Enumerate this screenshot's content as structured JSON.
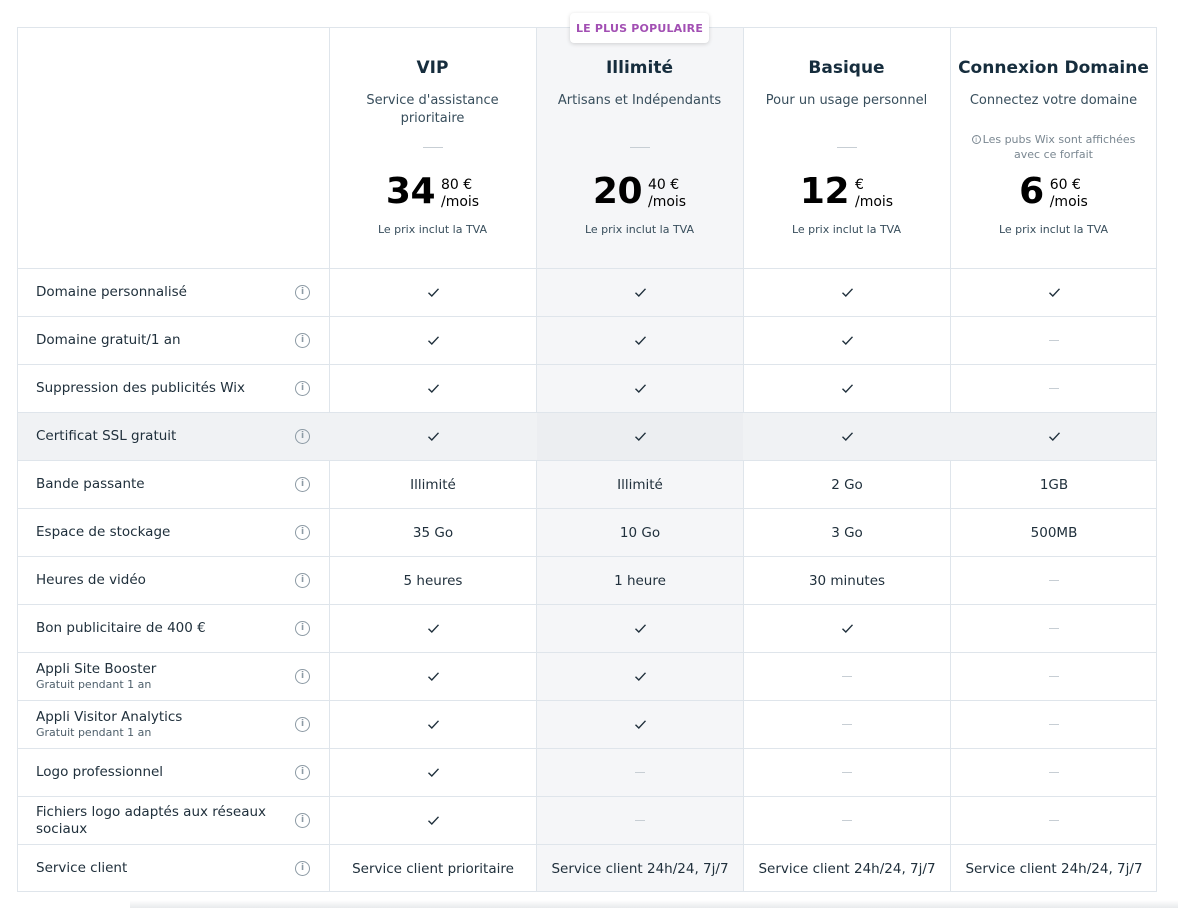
{
  "badge": "LE PLUS POPULAIRE",
  "plans": [
    {
      "name": "VIP",
      "desc": "Service d'assistance prioritaire",
      "ads_note": "",
      "price_int": "34",
      "price_dec": "80 €",
      "per": "/mois",
      "tax": "Le prix inclut la TVA"
    },
    {
      "name": "Illimité",
      "desc": "Artisans et Indépendants",
      "ads_note": "",
      "price_int": "20",
      "price_dec": "40 €",
      "per": "/mois",
      "tax": "Le prix inclut la TVA"
    },
    {
      "name": "Basique",
      "desc": "Pour un usage personnel",
      "ads_note": "",
      "price_int": "12",
      "price_dec": "€",
      "per": "/mois",
      "tax": "Le prix inclut la TVA"
    },
    {
      "name": "Connexion Domaine",
      "desc": "Connectez votre domaine",
      "ads_note": "Les pubs Wix sont affichées avec ce forfait",
      "price_int": "6",
      "price_dec": "60 €",
      "per": "/mois",
      "tax": "Le prix inclut la TVA"
    }
  ],
  "features": [
    {
      "label": "Domaine personnalisé",
      "sub": "",
      "values": [
        "check",
        "check",
        "check",
        "check"
      ]
    },
    {
      "label": "Domaine gratuit/1 an",
      "sub": "",
      "values": [
        "check",
        "check",
        "check",
        "none"
      ]
    },
    {
      "label": "Suppression des publicités Wix",
      "sub": "",
      "values": [
        "check",
        "check",
        "check",
        "none"
      ]
    },
    {
      "label": "Certificat SSL gratuit",
      "sub": "",
      "values": [
        "check",
        "check",
        "check",
        "check"
      ]
    },
    {
      "label": "Bande passante",
      "sub": "",
      "values": [
        "Illimité",
        "Illimité",
        "2 Go",
        "1GB"
      ]
    },
    {
      "label": "Espace de stockage",
      "sub": "",
      "values": [
        "35 Go",
        "10 Go",
        "3 Go",
        "500MB"
      ]
    },
    {
      "label": "Heures de vidéo",
      "sub": "",
      "values": [
        "5 heures",
        "1 heure",
        "30 minutes",
        "none"
      ]
    },
    {
      "label": "Bon publicitaire de 400 €",
      "sub": "",
      "values": [
        "check",
        "check",
        "check",
        "none"
      ]
    },
    {
      "label": "Appli Site Booster",
      "sub": "Gratuit pendant 1 an",
      "values": [
        "check",
        "check",
        "none",
        "none"
      ]
    },
    {
      "label": "Appli Visitor Analytics",
      "sub": "Gratuit pendant 1 an",
      "values": [
        "check",
        "check",
        "none",
        "none"
      ]
    },
    {
      "label": "Logo professionnel",
      "sub": "",
      "values": [
        "check",
        "none",
        "none",
        "none"
      ]
    },
    {
      "label": "Fichiers logo adaptés aux réseaux sociaux",
      "sub": "",
      "values": [
        "check",
        "none",
        "none",
        "none"
      ]
    },
    {
      "label": "Service client",
      "sub": "",
      "values": [
        "Service client prioritaire",
        "Service client 24h/24, 7j/7",
        "Service client 24h/24, 7j/7",
        "Service client 24h/24, 7j/7"
      ]
    }
  ],
  "highlighted_row": "Certificat SSL gratuit",
  "colors": {
    "accent": "#a24fb3",
    "border": "#dfe5eb",
    "popular_bg": "#f5f6f8"
  },
  "icons": {
    "check": "check-icon",
    "info": "info-icon",
    "none": "dash-icon"
  }
}
